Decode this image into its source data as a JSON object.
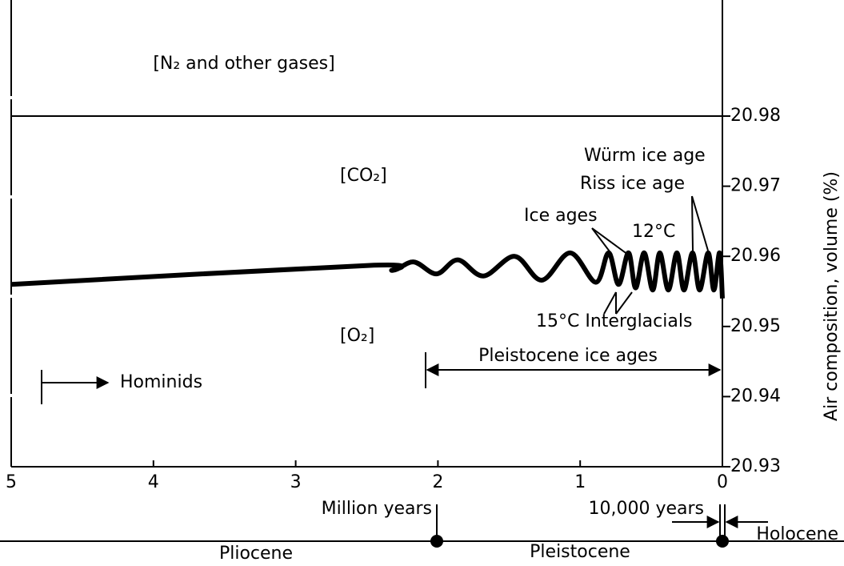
{
  "chart_data": {
    "type": "line",
    "x": [
      5,
      2.49,
      2.32,
      2.17,
      2.01,
      1.86,
      1.68,
      1.46,
      1.27,
      1.07,
      0.89,
      0.8,
      0.73,
      0.66,
      0.61,
      0.55,
      0.49,
      0.44,
      0.38,
      0.32,
      0.27,
      0.21,
      0.16,
      0.1,
      0.06,
      0.02,
      0
    ],
    "values": [
      20.956,
      20.9587,
      20.958,
      20.9592,
      20.9575,
      20.9595,
      20.9572,
      20.96,
      20.9566,
      20.9605,
      20.9563,
      20.9605,
      20.956,
      20.9605,
      20.9555,
      20.9605,
      20.9552,
      20.9605,
      20.9552,
      20.9605,
      20.9552,
      20.9605,
      20.9552,
      20.9605,
      20.9552,
      20.9605,
      20.954
    ],
    "color": "#000000",
    "xlim": [
      5,
      0
    ],
    "xticks": [
      5,
      4,
      3,
      2,
      1,
      0
    ],
    "ylim": [
      20.93,
      20.98
    ],
    "yticks": [
      20.93,
      20.94,
      20.95,
      20.96,
      20.97,
      20.98
    ],
    "y_label": "Air composition, volume (%)",
    "x_label": "Million years",
    "annotations": {
      "n2": "[N₂ and other gases]",
      "co2": "[CO₂]",
      "o2": "[O₂]",
      "wurm": "Würm ice age",
      "riss": "Riss ice age",
      "ice_ages": "Ice ages",
      "warm12": "12°C",
      "interglacials": "15°C Interglacials",
      "pleistocene_ice_ages": "Pleistocene ice ages",
      "hominids": "Hominids",
      "ten_thousand": "10,000 years",
      "holocene": "Holocene",
      "pliocene": "Pliocene",
      "pleistocene": "Pleistocene"
    }
  }
}
